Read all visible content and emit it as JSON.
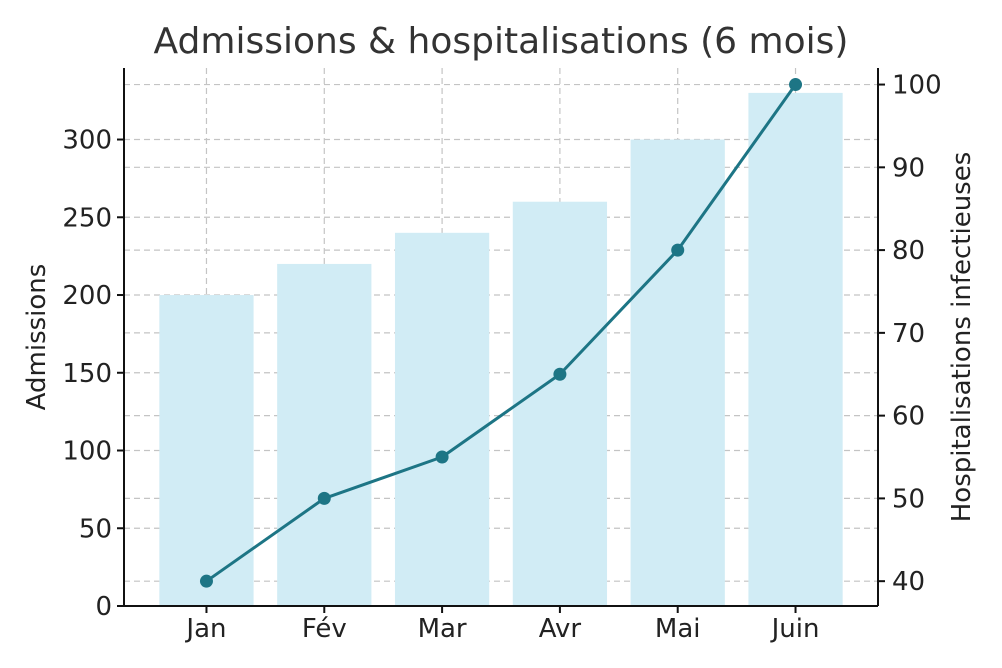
{
  "chart_data": {
    "type": "bar",
    "title": "Admissions & hospitalisations (6 mois)",
    "categories": [
      "Jan",
      "Fév",
      "Mar",
      "Avr",
      "Mai",
      "Juin"
    ],
    "series": [
      {
        "name": "Admissions",
        "type": "bar",
        "axis": "left",
        "color": "#d1ecf5",
        "values": [
          200,
          220,
          240,
          260,
          300,
          330
        ]
      },
      {
        "name": "Hospitalisations infectieuses",
        "type": "line",
        "axis": "right",
        "color": "#1d7585",
        "values": [
          40,
          50,
          55,
          65,
          80,
          100
        ]
      }
    ],
    "ylabel": "Admissions",
    "y2label": "Hospitalisations infectieuses",
    "ylim": [
      0,
      346
    ],
    "y2lim": [
      37,
      102
    ],
    "yticks": [
      0,
      50,
      100,
      150,
      200,
      250,
      300
    ],
    "y2ticks": [
      40,
      50,
      60,
      70,
      80,
      90,
      100
    ],
    "grid": true
  }
}
